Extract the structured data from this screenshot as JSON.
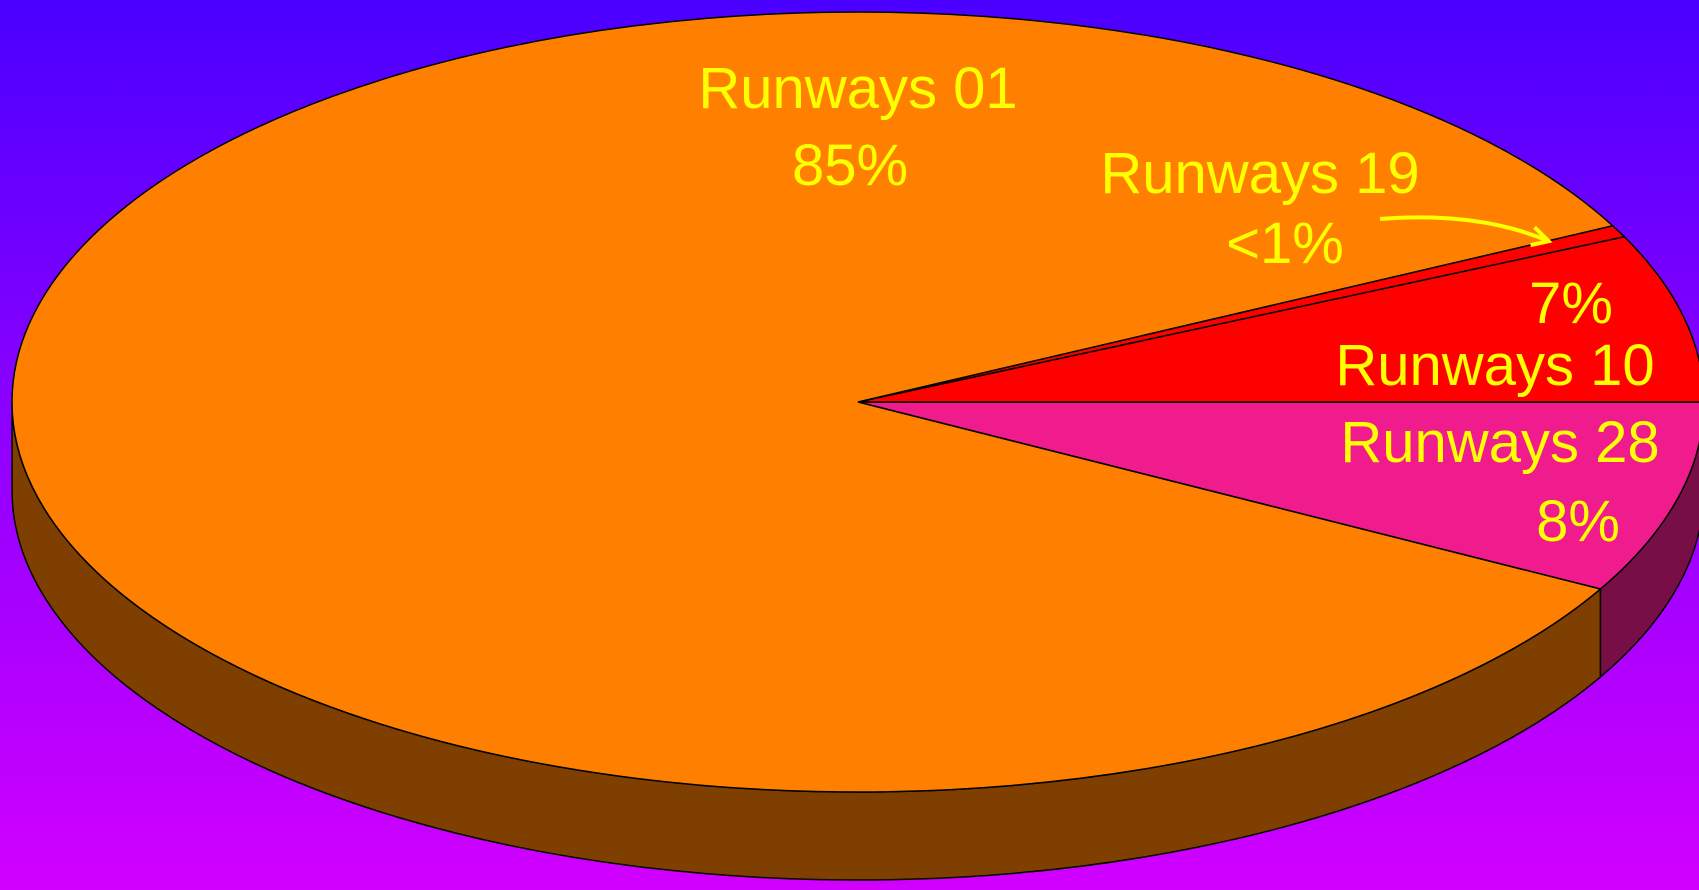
{
  "chart_data": {
    "type": "pie",
    "style": "3d",
    "slices": [
      {
        "label": "Runways 01",
        "value": 85,
        "value_label": "85%",
        "color": "#ff8000",
        "side_color": "#7f3f00"
      },
      {
        "label": "Runways 19",
        "value": 0.5,
        "value_label": "<1%",
        "color": "#ff0000",
        "side_color": "#7f0000"
      },
      {
        "label": "Runways 10",
        "value": 7,
        "value_label": "7%",
        "color": "#ff0000",
        "side_color": "#7f0000"
      },
      {
        "label": "Runways 28",
        "value": 8,
        "value_label": "8%",
        "color": "#f01b8c",
        "side_color": "#780e46"
      }
    ],
    "title": "",
    "legend": "none"
  },
  "colors": {
    "background_top": "#4a00ff",
    "background_bottom": "#d100ff",
    "label_text": "#ffff00",
    "outline": "#000000"
  }
}
